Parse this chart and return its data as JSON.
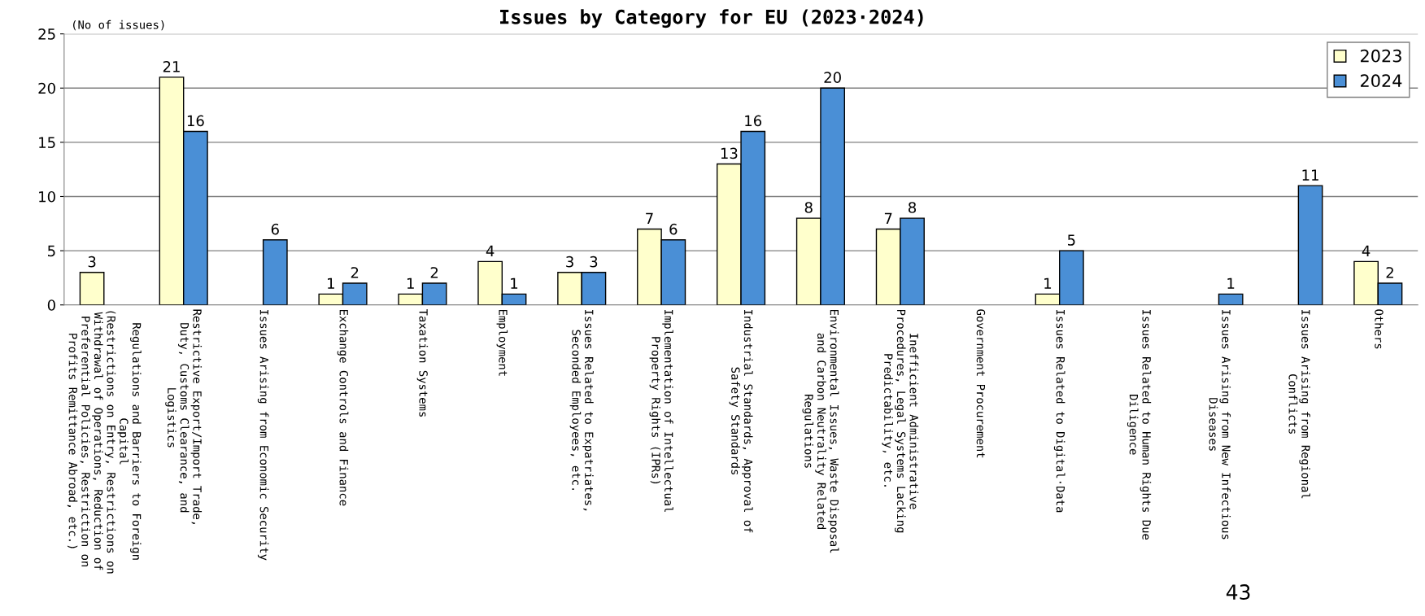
{
  "chart_data": {
    "type": "bar",
    "title": "Issues by Category for EU (2023·2024)",
    "ylabel": "(No of issues)",
    "categories": [
      "Regulations and Barriers to Foreign\nCapital\n(Restrictions on Entry, Restrictions on\nWithdrawal of Operations, Reduction of\nPreferential Policies, Restriction on\nProfits Remittance Abroad, etc.)",
      "Restrictive Export/Import Trade,\nDuty, Customs Clearance, and\nLogistics",
      "Issues Arising from Economic Security",
      "Exchange Controls and Finance",
      "Taxation Systems",
      "Employment",
      "Issues Related to Expatriates,\nSeconded Employees, etc.",
      "Implementation of Intellectual\nProperty Rights (IPRs)",
      "Industrial Standards, Approval of\nSafety Standards",
      "Environmental Issues, Waste Disposal\nand Carbon Neutrality Related\nRegulations",
      "Inefficient Administrative\nProcedures, Legal Systems Lacking\nPredictability, etc.",
      "Government Procurement",
      "Issues Related to Digital·Data",
      "Issues Related to Human Rights Due\nDiligence",
      "Issues Arising from New Infectious\nDiseases",
      "Issues Arising from Regional\nConflicts",
      "Others"
    ],
    "series": [
      {
        "name": "2023",
        "color": "#ffffcc",
        "values": [
          3,
          21,
          null,
          1,
          1,
          4,
          3,
          7,
          13,
          8,
          7,
          null,
          1,
          null,
          null,
          null,
          4
        ],
        "value_labels": [
          "3",
          "21",
          null,
          "1",
          "1",
          "4",
          "3",
          "7",
          "13",
          "8",
          "7",
          null,
          "1",
          null,
          null,
          null,
          "4"
        ]
      },
      {
        "name": "2024",
        "color": "#4a8fd6",
        "values": [
          null,
          16,
          6,
          2,
          2,
          1,
          3,
          6,
          16,
          20,
          8,
          null,
          5,
          null,
          1,
          11,
          2
        ],
        "value_labels": [
          null,
          "16",
          "6",
          "2",
          "2",
          "1",
          "3",
          "6",
          "16",
          "20",
          "8",
          null,
          "5",
          null,
          "1",
          "11",
          "2"
        ]
      }
    ],
    "ylim": [
      0,
      25
    ],
    "yticks": [
      0,
      5,
      10,
      15,
      20,
      25
    ],
    "grid": "y",
    "legend": "top right",
    "annotations": [
      "43"
    ]
  }
}
